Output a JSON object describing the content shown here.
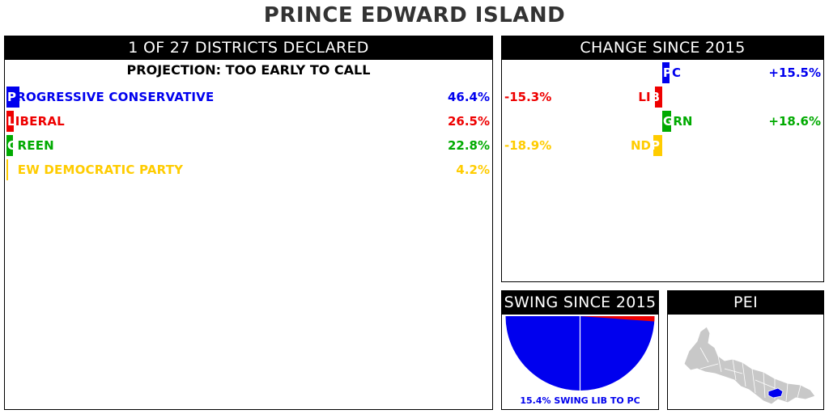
{
  "title": "PRINCE EDWARD ISLAND",
  "results_panel": {
    "header": "1 OF 27 DISTRICTS DECLARED",
    "projection": "PROJECTION: TOO EARLY TO CALL"
  },
  "change_panel": {
    "header": "CHANGE SINCE 2015"
  },
  "swing_panel": {
    "header": "SWING SINCE 2015",
    "caption": "15.4% SWING LIB TO PC"
  },
  "map_panel": {
    "header": "PEI"
  },
  "colors": {
    "pc": "#0000ee",
    "lib": "#ee0000",
    "grn": "#00aa00",
    "ndp": "#ffcc00",
    "map_land": "#c8c8c8",
    "map_highlight": "#0000ee"
  },
  "chart_data": [
    {
      "type": "bar",
      "title": "1 OF 27 DISTRICTS DECLARED",
      "categories": [
        "PROGRESSIVE CONSERVATIVE",
        "LIBERAL",
        "GREEN",
        "NEW DEMOCRATIC PARTY"
      ],
      "values": [
        46.4,
        26.5,
        22.8,
        4.2
      ],
      "value_labels": [
        "46.4%",
        "26.5%",
        "22.8%",
        "4.2%"
      ],
      "colors": [
        "#0000ee",
        "#ee0000",
        "#00aa00",
        "#ffcc00"
      ]
    },
    {
      "type": "bar",
      "title": "CHANGE SINCE 2015",
      "categories": [
        "PC",
        "LIB",
        "GRN",
        "NDP"
      ],
      "values": [
        15.5,
        -15.3,
        18.6,
        -18.9
      ],
      "value_labels": [
        "+15.5%",
        "-15.3%",
        "+18.6%",
        "-18.9%"
      ],
      "colors": [
        "#0000ee",
        "#ee0000",
        "#00aa00",
        "#ffcc00"
      ]
    },
    {
      "type": "pie",
      "title": "SWING SINCE 2015",
      "swing_percent": 15.4,
      "from": "LIB",
      "to": "PC"
    }
  ]
}
